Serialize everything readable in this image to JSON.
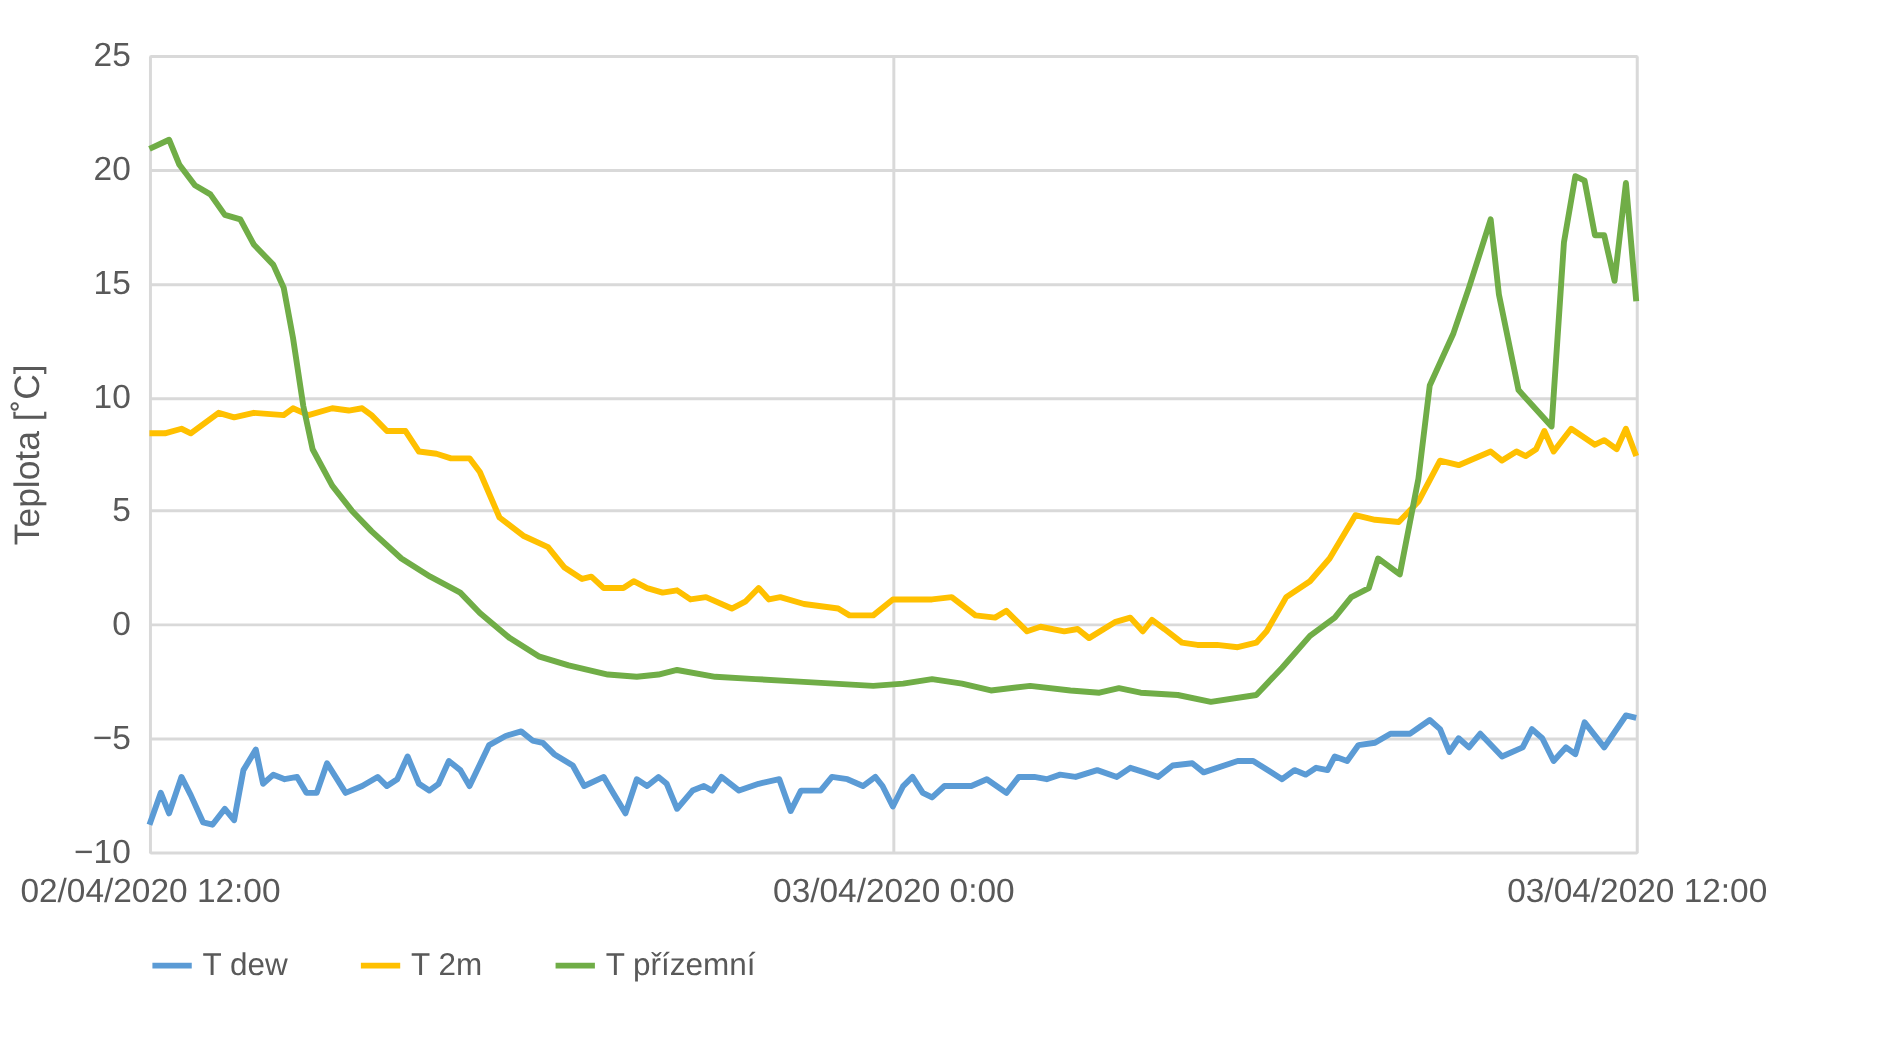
{
  "chart_data": {
    "type": "line",
    "ylabel": "Teplota [˚C]",
    "xlim": [
      "2020-04-02T12:00",
      "2020-04-03T12:00"
    ],
    "xticks": [
      {
        "value": "2020-04-02T12:00",
        "label": "02/04/2020 12:00"
      },
      {
        "value": "2020-04-03T00:00",
        "label": "03/04/2020 0:00"
      },
      {
        "value": "2020-04-03T12:00",
        "label": "03/04/2020 12:00"
      }
    ],
    "ylim": [
      -10,
      25
    ],
    "yticks": [
      -10,
      -5,
      0,
      5,
      10,
      15,
      20,
      25
    ],
    "grid": true,
    "legend": "bottom",
    "marker": "none",
    "line_style": "solid",
    "series": [
      {
        "name": "T dew",
        "color": "#5b9bd5",
        "x": [
          "2020-04-02T12:00",
          "2020-04-02T12:11",
          "2020-04-02T12:19",
          "2020-04-02T12:31",
          "2020-04-02T12:40",
          "2020-04-02T12:52",
          "2020-04-02T13:01",
          "2020-04-02T13:13",
          "2020-04-02T13:22",
          "2020-04-02T13:31",
          "2020-04-02T13:43",
          "2020-04-02T13:50",
          "2020-04-02T14:00",
          "2020-04-02T14:11",
          "2020-04-02T14:23",
          "2020-04-02T14:32",
          "2020-04-02T14:42",
          "2020-04-02T14:52",
          "2020-04-02T15:10",
          "2020-04-02T15:26",
          "2020-04-02T15:41",
          "2020-04-02T15:50",
          "2020-04-02T16:00",
          "2020-04-02T16:10",
          "2020-04-02T16:21",
          "2020-04-02T16:31",
          "2020-04-02T16:40",
          "2020-04-02T16:50",
          "2020-04-02T17:01",
          "2020-04-02T17:10",
          "2020-04-02T17:29",
          "2020-04-02T17:45",
          "2020-04-02T18:00",
          "2020-04-02T18:11",
          "2020-04-02T18:21",
          "2020-04-02T18:32",
          "2020-04-02T18:50",
          "2020-04-02T19:01",
          "2020-04-02T19:20",
          "2020-04-02T19:29",
          "2020-04-02T19:41",
          "2020-04-02T19:52",
          "2020-04-02T20:02",
          "2020-04-02T20:13",
          "2020-04-02T20:21",
          "2020-04-02T20:31",
          "2020-04-02T20:46",
          "2020-04-02T20:57",
          "2020-04-02T21:05",
          "2020-04-02T21:14",
          "2020-04-02T21:31",
          "2020-04-02T21:50",
          "2020-04-02T22:10",
          "2020-04-02T22:21",
          "2020-04-02T22:31",
          "2020-04-02T22:50",
          "2020-04-02T23:01",
          "2020-04-02T23:16",
          "2020-04-02T23:31",
          "2020-04-02T23:43",
          "2020-04-02T23:50",
          "2020-04-03T00:00",
          "2020-04-03T00:10",
          "2020-04-03T00:19",
          "2020-04-03T00:29",
          "2020-04-03T00:38",
          "2020-04-03T00:50",
          "2020-04-03T00:59",
          "2020-04-03T01:16",
          "2020-04-03T01:31",
          "2020-04-03T01:50",
          "2020-04-03T02:02",
          "2020-04-03T02:17",
          "2020-04-03T02:29",
          "2020-04-03T02:42",
          "2020-04-03T02:57",
          "2020-04-03T03:18",
          "2020-04-03T03:37",
          "2020-04-03T03:50",
          "2020-04-03T04:04",
          "2020-04-03T04:17",
          "2020-04-03T04:31",
          "2020-04-03T04:50",
          "2020-04-03T05:01",
          "2020-04-03T05:34",
          "2020-04-03T05:49",
          "2020-04-03T06:17",
          "2020-04-03T06:29",
          "2020-04-03T06:40",
          "2020-04-03T06:50",
          "2020-04-03T07:01",
          "2020-04-03T07:08",
          "2020-04-03T07:20",
          "2020-04-03T07:31",
          "2020-04-03T07:47",
          "2020-04-03T08:02",
          "2020-04-03T08:21",
          "2020-04-03T08:40",
          "2020-04-03T08:50",
          "2020-04-03T08:59",
          "2020-04-03T09:08",
          "2020-04-03T09:18",
          "2020-04-03T09:29",
          "2020-04-03T09:50",
          "2020-04-03T10:10",
          "2020-04-03T10:19",
          "2020-04-03T10:29",
          "2020-04-03T10:40",
          "2020-04-03T10:52",
          "2020-04-03T11:01",
          "2020-04-03T11:10",
          "2020-04-03T11:29",
          "2020-04-03T11:50",
          "2020-04-03T12:00"
        ],
        "values": [
          -8.8,
          -7.4,
          -8.3,
          -6.7,
          -7.5,
          -8.7,
          -8.8,
          -8.1,
          -8.6,
          -6.4,
          -5.5,
          -7.0,
          -6.6,
          -6.8,
          -6.7,
          -7.4,
          -7.4,
          -6.1,
          -7.4,
          -7.1,
          -6.7,
          -7.1,
          -6.8,
          -5.8,
          -7.0,
          -7.3,
          -7.0,
          -6.0,
          -6.4,
          -7.1,
          -5.3,
          -4.9,
          -4.7,
          -5.1,
          -5.2,
          -5.7,
          -6.2,
          -7.1,
          -6.7,
          -7.4,
          -8.3,
          -6.8,
          -7.1,
          -6.7,
          -7.0,
          -8.1,
          -7.3,
          -7.1,
          -7.3,
          -6.7,
          -7.3,
          -7.0,
          -6.8,
          -8.2,
          -7.3,
          -7.3,
          -6.7,
          -6.8,
          -7.1,
          -6.7,
          -7.1,
          -8.0,
          -7.1,
          -6.7,
          -7.4,
          -7.6,
          -7.1,
          -7.1,
          -7.1,
          -6.8,
          -7.4,
          -6.7,
          -6.7,
          -6.8,
          -6.6,
          -6.7,
          -6.4,
          -6.7,
          -6.3,
          -6.5,
          -6.7,
          -6.2,
          -6.1,
          -6.5,
          -6.0,
          -6.0,
          -6.8,
          -6.4,
          -6.6,
          -6.3,
          -6.4,
          -5.8,
          -6.0,
          -5.3,
          -5.2,
          -4.8,
          -4.8,
          -4.2,
          -4.6,
          -5.6,
          -5.0,
          -5.4,
          -4.8,
          -5.8,
          -5.4,
          -4.6,
          -5.0,
          -6.0,
          -5.4,
          -5.7,
          -4.3,
          -5.4,
          -4.0,
          -4.1
        ]
      },
      {
        "name": "T 2m",
        "color": "#ffc000",
        "x": [
          "2020-04-02T12:00",
          "2020-04-02T12:15",
          "2020-04-02T12:31",
          "2020-04-02T12:40",
          "2020-04-02T13:07",
          "2020-04-02T13:22",
          "2020-04-02T13:41",
          "2020-04-02T14:10",
          "2020-04-02T14:19",
          "2020-04-02T14:34",
          "2020-04-02T14:57",
          "2020-04-02T15:13",
          "2020-04-02T15:26",
          "2020-04-02T15:35",
          "2020-04-02T15:50",
          "2020-04-02T16:08",
          "2020-04-02T16:21",
          "2020-04-02T16:38",
          "2020-04-02T16:52",
          "2020-04-02T17:10",
          "2020-04-02T17:20",
          "2020-04-02T17:39",
          "2020-04-02T18:02",
          "2020-04-02T18:26",
          "2020-04-02T18:42",
          "2020-04-02T18:59",
          "2020-04-02T19:08",
          "2020-04-02T19:20",
          "2020-04-02T19:39",
          "2020-04-02T19:49",
          "2020-04-02T20:02",
          "2020-04-02T20:17",
          "2020-04-02T20:31",
          "2020-04-02T20:44",
          "2020-04-02T20:59",
          "2020-04-02T21:24",
          "2020-04-02T21:37",
          "2020-04-02T21:50",
          "2020-04-02T22:00",
          "2020-04-02T22:11",
          "2020-04-02T22:34",
          "2020-04-02T23:07",
          "2020-04-02T23:18",
          "2020-04-02T23:41",
          "2020-04-03T00:00",
          "2020-04-03T00:38",
          "2020-04-03T00:57",
          "2020-04-03T01:20",
          "2020-04-03T01:39",
          "2020-04-03T01:50",
          "2020-04-03T02:10",
          "2020-04-03T02:23",
          "2020-04-03T02:46",
          "2020-04-03T02:59",
          "2020-04-03T03:10",
          "2020-04-03T03:35",
          "2020-04-03T03:50",
          "2020-04-03T04:02",
          "2020-04-03T04:11",
          "2020-04-03T04:23",
          "2020-04-03T04:40",
          "2020-04-03T04:55",
          "2020-04-03T05:14",
          "2020-04-03T05:34",
          "2020-04-03T05:52",
          "2020-04-03T06:02",
          "2020-04-03T06:21",
          "2020-04-03T06:44",
          "2020-04-03T07:03",
          "2020-04-03T07:28",
          "2020-04-03T07:47",
          "2020-04-03T08:10",
          "2020-04-03T08:29",
          "2020-04-03T08:50",
          "2020-04-03T09:08",
          "2020-04-03T09:39",
          "2020-04-03T09:50",
          "2020-04-03T10:04",
          "2020-04-03T10:13",
          "2020-04-03T10:23",
          "2020-04-03T10:31",
          "2020-04-03T10:40",
          "2020-04-03T10:57",
          "2020-04-03T11:20",
          "2020-04-03T11:29",
          "2020-04-03T11:41",
          "2020-04-03T11:50",
          "2020-04-03T12:00"
        ],
        "values": [
          8.4,
          8.4,
          8.6,
          8.4,
          9.3,
          9.1,
          9.3,
          9.2,
          9.5,
          9.2,
          9.5,
          9.4,
          9.5,
          9.2,
          8.5,
          8.5,
          7.6,
          7.5,
          7.3,
          7.3,
          6.7,
          4.7,
          3.9,
          3.4,
          2.5,
          2.0,
          2.1,
          1.6,
          1.6,
          1.9,
          1.6,
          1.4,
          1.5,
          1.1,
          1.2,
          0.7,
          1.0,
          1.6,
          1.1,
          1.2,
          0.9,
          0.7,
          0.4,
          0.4,
          1.1,
          1.1,
          1.2,
          0.4,
          0.3,
          0.6,
          -0.3,
          -0.1,
          -0.3,
          -0.2,
          -0.6,
          0.1,
          0.3,
          -0.3,
          0.2,
          -0.2,
          -0.8,
          -0.9,
          -0.9,
          -1.0,
          -0.8,
          -0.3,
          1.2,
          1.9,
          2.9,
          4.8,
          4.6,
          4.5,
          5.4,
          7.2,
          7.0,
          7.6,
          7.2,
          7.6,
          7.4,
          7.7,
          8.5,
          7.6,
          8.6,
          7.9,
          8.1,
          7.7,
          8.6,
          7.4
        ]
      },
      {
        "name": "T přízemní",
        "color": "#70ad47",
        "x": [
          "2020-04-02T12:00",
          "2020-04-02T12:19",
          "2020-04-02T12:29",
          "2020-04-02T12:44",
          "2020-04-02T12:59",
          "2020-04-02T13:13",
          "2020-04-02T13:28",
          "2020-04-02T13:41",
          "2020-04-02T14:00",
          "2020-04-02T14:10",
          "2020-04-02T14:19",
          "2020-04-02T14:29",
          "2020-04-02T14:38",
          "2020-04-02T14:57",
          "2020-04-02T15:16",
          "2020-04-02T15:35",
          "2020-04-02T16:04",
          "2020-04-02T16:32",
          "2020-04-02T17:01",
          "2020-04-02T17:20",
          "2020-04-02T17:49",
          "2020-04-02T18:17",
          "2020-04-02T18:46",
          "2020-04-02T19:24",
          "2020-04-02T19:52",
          "2020-04-02T20:13",
          "2020-04-02T20:31",
          "2020-04-02T21:08",
          "2020-04-02T21:47",
          "2020-04-02T22:25",
          "2020-04-02T23:03",
          "2020-04-02T23:41",
          "2020-04-03T00:10",
          "2020-04-03T00:38",
          "2020-04-03T01:07",
          "2020-04-03T01:35",
          "2020-04-03T02:13",
          "2020-04-03T02:52",
          "2020-04-03T03:20",
          "2020-04-03T03:39",
          "2020-04-03T04:00",
          "2020-04-03T04:36",
          "2020-04-03T05:08",
          "2020-04-03T05:52",
          "2020-04-03T06:17",
          "2020-04-03T06:44",
          "2020-04-03T07:08",
          "2020-04-03T07:24",
          "2020-04-03T07:41",
          "2020-04-03T07:50",
          "2020-04-03T08:11",
          "2020-04-03T08:29",
          "2020-04-03T08:40",
          "2020-04-03T09:03",
          "2020-04-03T09:18",
          "2020-04-03T09:39",
          "2020-04-03T09:47",
          "2020-04-03T10:06",
          "2020-04-03T10:38",
          "2020-04-03T10:50",
          "2020-04-03T11:01",
          "2020-04-03T11:10",
          "2020-04-03T11:20",
          "2020-04-03T11:29",
          "2020-04-03T11:39",
          "2020-04-03T11:50",
          "2020-04-03T12:00"
        ],
        "values": [
          20.9,
          21.3,
          20.2,
          19.3,
          18.9,
          18.0,
          17.8,
          16.7,
          15.8,
          14.8,
          12.6,
          9.6,
          7.7,
          6.1,
          5.0,
          4.1,
          2.9,
          2.1,
          1.4,
          0.5,
          -0.6,
          -1.4,
          -1.8,
          -2.2,
          -2.3,
          -2.2,
          -2.0,
          -2.3,
          -2.4,
          -2.5,
          -2.6,
          -2.7,
          -2.6,
          -2.4,
          -2.6,
          -2.9,
          -2.7,
          -2.9,
          -3.0,
          -2.8,
          -3.0,
          -3.1,
          -3.4,
          -3.1,
          -1.9,
          -0.5,
          0.3,
          1.2,
          1.6,
          2.9,
          2.2,
          6.4,
          10.5,
          12.8,
          14.8,
          17.8,
          14.5,
          10.3,
          8.7,
          16.8,
          19.7,
          19.5,
          17.1,
          17.1,
          15.1,
          19.4,
          14.2
        ]
      }
    ]
  }
}
